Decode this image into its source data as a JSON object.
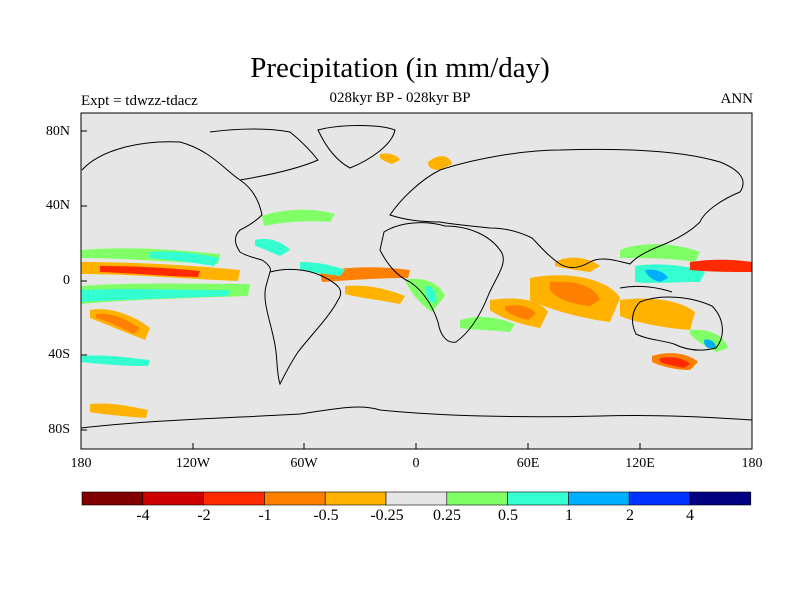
{
  "title": "Precipitation (in mm/day)",
  "subtitle": "028kyr BP - 028kyr BP",
  "left_label": "Expt = tdwzz-tdacz",
  "right_label": "ANN",
  "lat_labels": [
    "80N",
    "40N",
    "0",
    "40S",
    "80S"
  ],
  "lon_labels": [
    "180",
    "120W",
    "60W",
    "0",
    "60E",
    "120E",
    "180"
  ],
  "legend": {
    "colors": [
      "#800000",
      "#cc0000",
      "#ff2a00",
      "#ff7f00",
      "#ffb300",
      "#e6e6e6",
      "#80ff66",
      "#33ffd0",
      "#00b0ff",
      "#0033ff",
      "#000080"
    ],
    "labels": [
      "-4",
      "-2",
      "-1",
      "-0.5",
      "-0.25",
      "0.25",
      "0.5",
      "1",
      "2",
      "4"
    ]
  },
  "map": {
    "background": "#e6e6e6",
    "coastline_color": "#000000"
  }
}
